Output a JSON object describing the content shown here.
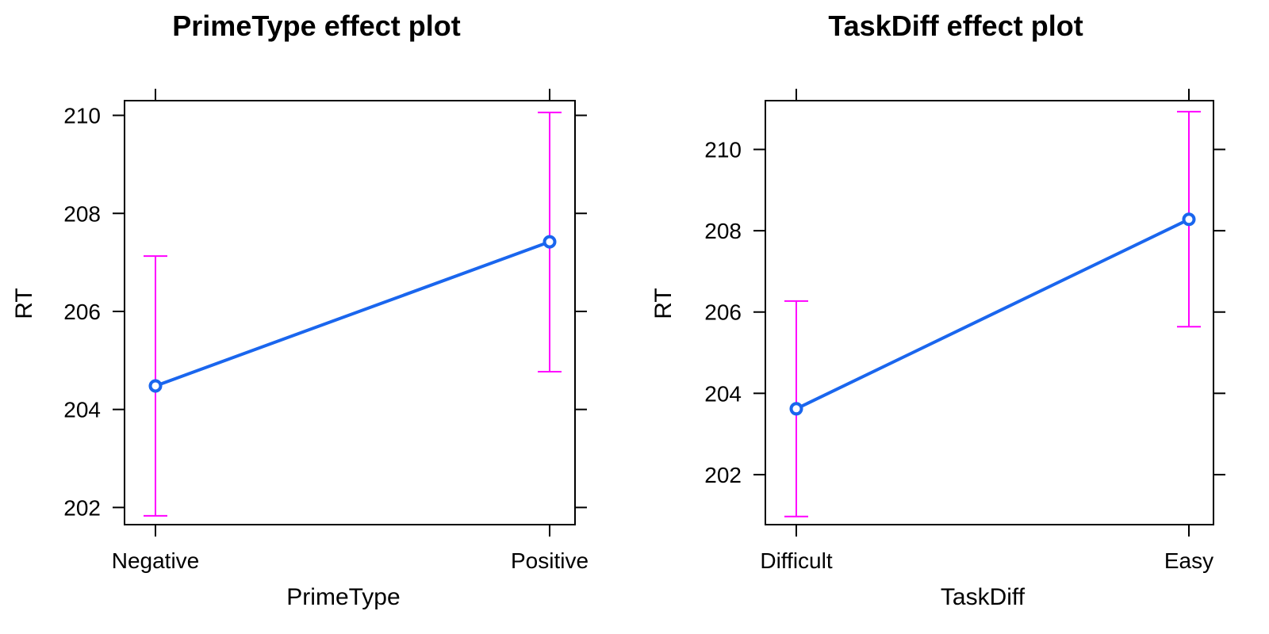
{
  "chart_data": [
    {
      "type": "line",
      "title": "PrimeType effect plot",
      "xlabel": "PrimeType",
      "ylabel": "RT",
      "categories": [
        "Negative",
        "Positive"
      ],
      "values": [
        204.48,
        207.42
      ],
      "lower": [
        201.83,
        204.77
      ],
      "upper": [
        207.13,
        210.06
      ],
      "ylim": [
        201.65,
        210.3
      ],
      "yticks": [
        202,
        204,
        206,
        208,
        210
      ],
      "grid": false,
      "colors": {
        "line": "#1a66ee",
        "error_bars": "#ff00ff",
        "axes": "#000000"
      }
    },
    {
      "type": "line",
      "title": "TaskDiff effect plot",
      "xlabel": "TaskDiff",
      "ylabel": "RT",
      "categories": [
        "Difficult",
        "Easy"
      ],
      "values": [
        203.62,
        208.28
      ],
      "lower": [
        200.97,
        205.64
      ],
      "upper": [
        206.27,
        210.93
      ],
      "ylim": [
        200.77,
        211.2
      ],
      "yticks": [
        202,
        204,
        206,
        208,
        210
      ],
      "grid": false,
      "colors": {
        "line": "#1a66ee",
        "error_bars": "#ff00ff",
        "axes": "#000000"
      }
    }
  ]
}
